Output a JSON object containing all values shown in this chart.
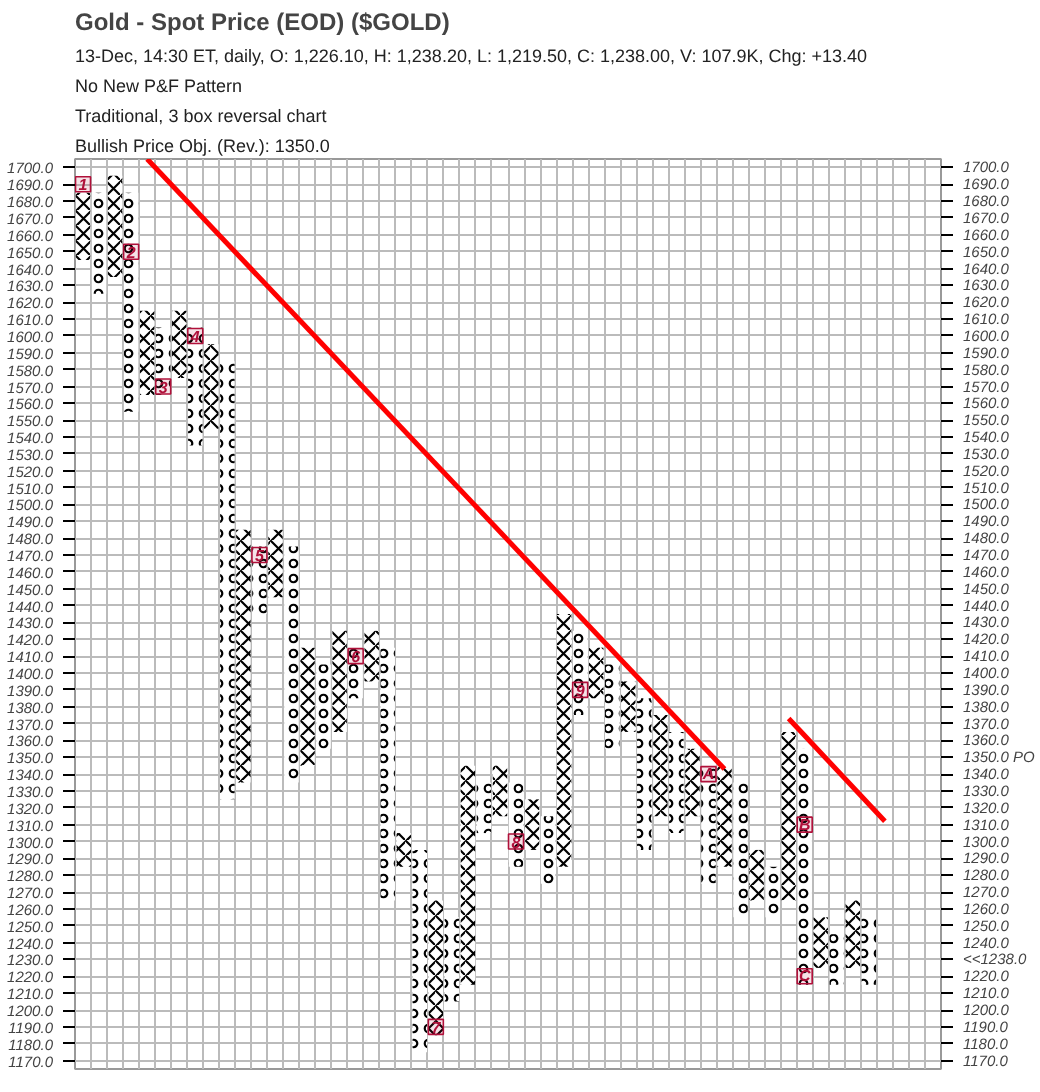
{
  "chart_data": {
    "type": "bar",
    "title": "Gold - Spot Price (EOD) ($GOLD)",
    "subtitle": "13-Dec, 14:30 ET, daily, O: 1,226.10, H: 1,238.20, L: 1,219.50, C: 1,238.00, V: 107.9K, Chg: +13.40",
    "annotations": [
      "No New P&F Pattern",
      "Traditional, 3 box reversal chart",
      "Bullish Price Obj. (Rev.): 1350.0"
    ],
    "categories": [
      null,
      null,
      null,
      null,
      null,
      null,
      null,
      null,
      null,
      null,
      null,
      null,
      null,
      null,
      null,
      null,
      null,
      null,
      null,
      null,
      null,
      null,
      null,
      null,
      null,
      null,
      null,
      null,
      null,
      null,
      null,
      null,
      null,
      null,
      null,
      null,
      null,
      null,
      null,
      null,
      null,
      null,
      null,
      null,
      null,
      null,
      null,
      null,
      null,
      null,
      null,
      null,
      null,
      null
    ],
    "series": [
      {
        "marker": "cross",
        "color": "#000000",
        "base": [
          1645,
          null,
          1635,
          null,
          1565,
          null,
          1575,
          null,
          1545,
          null,
          1335,
          null,
          1445,
          null,
          1345,
          null,
          1365,
          null,
          1395,
          null,
          1285,
          null,
          1185,
          null,
          1215,
          null,
          1315,
          null,
          1295,
          null,
          1285,
          null,
          1385,
          null,
          1365,
          null,
          1315,
          null,
          1315,
          null,
          1285,
          null,
          1265,
          null,
          1265,
          null,
          1225,
          null,
          1225,
          null,
          null,
          null,
          null,
          null
        ],
        "values": [
          40,
          null,
          60,
          null,
          50,
          null,
          40,
          null,
          50,
          null,
          150,
          null,
          40,
          null,
          70,
          null,
          60,
          null,
          30,
          null,
          20,
          null,
          80,
          null,
          130,
          null,
          30,
          null,
          30,
          null,
          150,
          null,
          30,
          null,
          30,
          null,
          60,
          null,
          40,
          null,
          60,
          null,
          30,
          null,
          100,
          null,
          30,
          null,
          40,
          null,
          null,
          null,
          null,
          null
        ]
      },
      {
        "marker": "circle",
        "color": "#000000",
        "base": [
          null,
          1625,
          null,
          1555,
          null,
          1565,
          null,
          1535,
          null,
          1325,
          null,
          1435,
          null,
          1335,
          null,
          1355,
          null,
          1385,
          null,
          1265,
          null,
          1175,
          null,
          1205,
          null,
          1305,
          null,
          1285,
          null,
          1275,
          null,
          1375,
          null,
          1355,
          null,
          1295,
          null,
          1305,
          null,
          1275,
          null,
          1255,
          null,
          1255,
          null,
          1215,
          null,
          1215,
          null,
          1215,
          null,
          null,
          null,
          null
        ],
        "values": [
          null,
          60,
          null,
          130,
          null,
          40,
          null,
          70,
          null,
          260,
          null,
          40,
          null,
          140,
          null,
          50,
          null,
          30,
          null,
          150,
          null,
          120,
          null,
          50,
          null,
          30,
          null,
          50,
          null,
          40,
          null,
          50,
          null,
          50,
          null,
          90,
          null,
          60,
          null,
          70,
          null,
          80,
          null,
          30,
          null,
          140,
          null,
          30,
          null,
          40,
          null,
          null,
          null,
          null
        ]
      },
      {
        "type": "line",
        "color": "#ff0000",
        "values": [
          null,
          null,
          null,
          null,
          1705,
          null,
          null,
          null,
          null,
          null,
          null,
          null,
          null,
          null,
          null,
          null,
          null,
          null,
          null,
          null,
          null,
          null,
          null,
          null,
          null,
          null,
          null,
          null,
          null,
          null,
          null,
          null,
          null,
          null,
          null,
          null,
          null,
          null,
          null,
          null,
          1343,
          null,
          null,
          null,
          null,
          null,
          null,
          null,
          null,
          null,
          null,
          null,
          null,
          null
        ]
      },
      {
        "type": "line",
        "color": "#ff0000",
        "values": [
          null,
          null,
          null,
          null,
          null,
          null,
          null,
          null,
          null,
          null,
          null,
          null,
          null,
          null,
          null,
          null,
          null,
          null,
          null,
          null,
          null,
          null,
          null,
          null,
          null,
          null,
          null,
          null,
          null,
          null,
          null,
          null,
          null,
          null,
          null,
          null,
          null,
          null,
          null,
          null,
          null,
          null,
          null,
          null,
          1373,
          null,
          null,
          null,
          null,
          null,
          1312,
          null,
          null,
          null
        ]
      },
      {
        "type": "scatter",
        "marker": "square",
        "name": "1",
        "color": "#b0103a",
        "values": [
          1690,
          null,
          null,
          null,
          null,
          null,
          null,
          null,
          null,
          null,
          null,
          null,
          null,
          null,
          null,
          null,
          null,
          null,
          null,
          null,
          null,
          null,
          null,
          null,
          null,
          null,
          null,
          null,
          null,
          null,
          null,
          null,
          null,
          null,
          null,
          null,
          null,
          null,
          null,
          null,
          null,
          null,
          null,
          null,
          null,
          null,
          null,
          null,
          null,
          null,
          null,
          null,
          null,
          null
        ]
      },
      {
        "type": "scatter",
        "marker": "square",
        "name": "2",
        "color": "#b0103a",
        "values": [
          null,
          null,
          null,
          1650,
          null,
          null,
          null,
          null,
          null,
          null,
          null,
          null,
          null,
          null,
          null,
          null,
          null,
          null,
          null,
          null,
          null,
          null,
          null,
          null,
          null,
          null,
          null,
          null,
          null,
          null,
          null,
          null,
          null,
          null,
          null,
          null,
          null,
          null,
          null,
          null,
          null,
          null,
          null,
          null,
          null,
          null,
          null,
          null,
          null,
          null,
          null,
          null,
          null,
          null
        ]
      },
      {
        "type": "scatter",
        "marker": "square",
        "name": "3",
        "color": "#b0103a",
        "values": [
          null,
          null,
          null,
          null,
          null,
          1570,
          null,
          null,
          null,
          null,
          null,
          null,
          null,
          null,
          null,
          null,
          null,
          null,
          null,
          null,
          null,
          null,
          null,
          null,
          null,
          null,
          null,
          null,
          null,
          null,
          null,
          null,
          null,
          null,
          null,
          null,
          null,
          null,
          null,
          null,
          null,
          null,
          null,
          null,
          null,
          null,
          null,
          null,
          null,
          null,
          null,
          null,
          null,
          null
        ]
      },
      {
        "type": "scatter",
        "marker": "square",
        "name": "4",
        "color": "#b0103a",
        "values": [
          null,
          null,
          null,
          null,
          null,
          null,
          null,
          1600,
          null,
          null,
          null,
          null,
          null,
          null,
          null,
          null,
          null,
          null,
          null,
          null,
          null,
          null,
          null,
          null,
          null,
          null,
          null,
          null,
          null,
          null,
          null,
          null,
          null,
          null,
          null,
          null,
          null,
          null,
          null,
          null,
          null,
          null,
          null,
          null,
          null,
          null,
          null,
          null,
          null,
          null,
          null,
          null,
          null,
          null
        ]
      },
      {
        "type": "scatter",
        "marker": "square",
        "name": "5",
        "color": "#b0103a",
        "values": [
          null,
          null,
          null,
          null,
          null,
          null,
          null,
          null,
          null,
          null,
          null,
          1470,
          null,
          null,
          null,
          null,
          null,
          null,
          null,
          null,
          null,
          null,
          null,
          null,
          null,
          null,
          null,
          null,
          null,
          null,
          null,
          null,
          null,
          null,
          null,
          null,
          null,
          null,
          null,
          null,
          null,
          null,
          null,
          null,
          null,
          null,
          null,
          null,
          null,
          null,
          null,
          null,
          null,
          null
        ]
      },
      {
        "type": "scatter",
        "marker": "square",
        "name": "6",
        "color": "#b0103a",
        "values": [
          null,
          null,
          null,
          null,
          null,
          null,
          null,
          null,
          null,
          null,
          null,
          null,
          null,
          null,
          null,
          null,
          null,
          1410,
          null,
          null,
          null,
          null,
          null,
          null,
          null,
          null,
          null,
          null,
          null,
          null,
          null,
          null,
          null,
          null,
          null,
          null,
          null,
          null,
          null,
          null,
          null,
          null,
          null,
          null,
          null,
          null,
          null,
          null,
          null,
          null,
          null,
          null,
          null,
          null
        ]
      },
      {
        "type": "scatter",
        "marker": "square",
        "name": "7",
        "color": "#b0103a",
        "values": [
          null,
          null,
          null,
          null,
          null,
          null,
          null,
          null,
          null,
          null,
          null,
          null,
          null,
          null,
          null,
          null,
          null,
          null,
          null,
          null,
          null,
          null,
          1190,
          null,
          null,
          null,
          null,
          null,
          null,
          null,
          null,
          null,
          null,
          null,
          null,
          null,
          null,
          null,
          null,
          null,
          null,
          null,
          null,
          null,
          null,
          null,
          null,
          null,
          null,
          null,
          null,
          null,
          null,
          null
        ]
      },
      {
        "type": "scatter",
        "marker": "square",
        "name": "8",
        "color": "#b0103a",
        "values": [
          null,
          null,
          null,
          null,
          null,
          null,
          null,
          null,
          null,
          null,
          null,
          null,
          null,
          null,
          null,
          null,
          null,
          null,
          null,
          null,
          null,
          null,
          null,
          null,
          null,
          null,
          null,
          1300,
          null,
          null,
          null,
          null,
          null,
          null,
          null,
          null,
          null,
          null,
          null,
          null,
          null,
          null,
          null,
          null,
          null,
          null,
          null,
          null,
          null,
          null,
          null,
          null,
          null,
          null
        ]
      },
      {
        "type": "scatter",
        "marker": "square",
        "name": "9",
        "color": "#b0103a",
        "values": [
          null,
          null,
          null,
          null,
          null,
          null,
          null,
          null,
          null,
          null,
          null,
          null,
          null,
          null,
          null,
          null,
          null,
          null,
          null,
          null,
          null,
          null,
          null,
          null,
          null,
          null,
          null,
          null,
          null,
          null,
          null,
          1390,
          null,
          null,
          null,
          null,
          null,
          null,
          null,
          null,
          null,
          null,
          null,
          null,
          null,
          null,
          null,
          null,
          null,
          null,
          null,
          null,
          null,
          null
        ]
      },
      {
        "type": "scatter",
        "marker": "square",
        "name": "A",
        "color": "#b0103a",
        "values": [
          null,
          null,
          null,
          null,
          null,
          null,
          null,
          null,
          null,
          null,
          null,
          null,
          null,
          null,
          null,
          null,
          null,
          null,
          null,
          null,
          null,
          null,
          null,
          null,
          null,
          null,
          null,
          null,
          null,
          null,
          null,
          null,
          null,
          null,
          null,
          null,
          null,
          null,
          null,
          1340,
          null,
          null,
          null,
          null,
          null,
          null,
          null,
          null,
          null,
          null,
          null,
          null,
          null,
          null
        ]
      },
      {
        "type": "scatter",
        "marker": "square",
        "name": "B",
        "color": "#b0103a",
        "values": [
          null,
          null,
          null,
          null,
          null,
          null,
          null,
          null,
          null,
          null,
          null,
          null,
          null,
          null,
          null,
          null,
          null,
          null,
          null,
          null,
          null,
          null,
          null,
          null,
          null,
          null,
          null,
          null,
          null,
          null,
          null,
          null,
          null,
          null,
          null,
          null,
          null,
          null,
          null,
          null,
          null,
          null,
          null,
          null,
          null,
          1310,
          null,
          null,
          null,
          null,
          null,
          null,
          null,
          null
        ]
      },
      {
        "type": "scatter",
        "marker": "square",
        "name": "C",
        "color": "#b0103a",
        "values": [
          null,
          null,
          null,
          null,
          null,
          null,
          null,
          null,
          null,
          null,
          null,
          null,
          null,
          null,
          null,
          null,
          null,
          null,
          null,
          null,
          null,
          null,
          null,
          null,
          null,
          null,
          null,
          null,
          null,
          null,
          null,
          null,
          null,
          null,
          null,
          null,
          null,
          null,
          null,
          null,
          null,
          null,
          null,
          null,
          null,
          1220,
          null,
          null,
          null,
          null,
          null,
          null,
          null,
          null
        ]
      }
    ],
    "ylim": [
      1165,
      1705
    ],
    "yticks": [
      {
        "value": 1700,
        "label": "1700.0"
      },
      {
        "value": 1690,
        "label": "1690.0"
      },
      {
        "value": 1680,
        "label": "1680.0"
      },
      {
        "value": 1670,
        "label": "1670.0"
      },
      {
        "value": 1660,
        "label": "1660.0"
      },
      {
        "value": 1650,
        "label": "1650.0"
      },
      {
        "value": 1640,
        "label": "1640.0"
      },
      {
        "value": 1630,
        "label": "1630.0"
      },
      {
        "value": 1620,
        "label": "1620.0"
      },
      {
        "value": 1610,
        "label": "1610.0"
      },
      {
        "value": 1600,
        "label": "1600.0"
      },
      {
        "value": 1590,
        "label": "1590.0"
      },
      {
        "value": 1580,
        "label": "1580.0"
      },
      {
        "value": 1570,
        "label": "1570.0"
      },
      {
        "value": 1560,
        "label": "1560.0"
      },
      {
        "value": 1550,
        "label": "1550.0"
      },
      {
        "value": 1540,
        "label": "1540.0"
      },
      {
        "value": 1530,
        "label": "1530.0"
      },
      {
        "value": 1520,
        "label": "1520.0"
      },
      {
        "value": 1510,
        "label": "1510.0"
      },
      {
        "value": 1500,
        "label": "1500.0"
      },
      {
        "value": 1490,
        "label": "1490.0"
      },
      {
        "value": 1480,
        "label": "1480.0"
      },
      {
        "value": 1470,
        "label": "1470.0"
      },
      {
        "value": 1460,
        "label": "1460.0"
      },
      {
        "value": 1450,
        "label": "1450.0"
      },
      {
        "value": 1440,
        "label": "1440.0"
      },
      {
        "value": 1430,
        "label": "1430.0"
      },
      {
        "value": 1420,
        "label": "1420.0"
      },
      {
        "value": 1410,
        "label": "1410.0"
      },
      {
        "value": 1400,
        "label": "1400.0"
      },
      {
        "value": 1390,
        "label": "1390.0"
      },
      {
        "value": 1380,
        "label": "1380.0"
      },
      {
        "value": 1370,
        "label": "1370.0"
      },
      {
        "value": 1360,
        "label": "1360.0"
      },
      {
        "value": 1350,
        "label": "1350.0"
      },
      {
        "value": 1340,
        "label": "1340.0"
      },
      {
        "value": 1330,
        "label": "1330.0"
      },
      {
        "value": 1320,
        "label": "1320.0"
      },
      {
        "value": 1310,
        "label": "1310.0"
      },
      {
        "value": 1300,
        "label": "1300.0"
      },
      {
        "value": 1290,
        "label": "1290.0"
      },
      {
        "value": 1280,
        "label": "1280.0"
      },
      {
        "value": 1270,
        "label": "1270.0"
      },
      {
        "value": 1260,
        "label": "1260.0"
      },
      {
        "value": 1250,
        "label": "1250.0"
      },
      {
        "value": 1240,
        "label": "1240.0"
      },
      {
        "value": 1230,
        "label": "1230.0"
      },
      {
        "value": 1220,
        "label": "1220.0"
      },
      {
        "value": 1210,
        "label": "1210.0"
      },
      {
        "value": 1200,
        "label": "1200.0"
      },
      {
        "value": 1190,
        "label": "1190.0"
      },
      {
        "value": 1180,
        "label": "1180.0"
      },
      {
        "value": 1170,
        "label": "1170.0"
      }
    ],
    "y2lim": [
      1165,
      1705
    ],
    "y2ticks": [
      {
        "value": 1700,
        "label": "1700.0"
      },
      {
        "value": 1690,
        "label": "1690.0"
      },
      {
        "value": 1680,
        "label": "1680.0"
      },
      {
        "value": 1670,
        "label": "1670.0"
      },
      {
        "value": 1660,
        "label": "1660.0"
      },
      {
        "value": 1650,
        "label": "1650.0"
      },
      {
        "value": 1640,
        "label": "1640.0"
      },
      {
        "value": 1630,
        "label": "1630.0"
      },
      {
        "value": 1620,
        "label": "1620.0"
      },
      {
        "value": 1610,
        "label": "1610.0"
      },
      {
        "value": 1600,
        "label": "1600.0"
      },
      {
        "value": 1590,
        "label": "1590.0"
      },
      {
        "value": 1580,
        "label": "1580.0"
      },
      {
        "value": 1570,
        "label": "1570.0"
      },
      {
        "value": 1560,
        "label": "1560.0"
      },
      {
        "value": 1550,
        "label": "1550.0"
      },
      {
        "value": 1540,
        "label": "1540.0"
      },
      {
        "value": 1530,
        "label": "1530.0"
      },
      {
        "value": 1520,
        "label": "1520.0"
      },
      {
        "value": 1510,
        "label": "1510.0"
      },
      {
        "value": 1500,
        "label": "1500.0"
      },
      {
        "value": 1490,
        "label": "1490.0"
      },
      {
        "value": 1480,
        "label": "1480.0"
      },
      {
        "value": 1470,
        "label": "1470.0"
      },
      {
        "value": 1460,
        "label": "1460.0"
      },
      {
        "value": 1450,
        "label": "1450.0"
      },
      {
        "value": 1440,
        "label": "1440.0"
      },
      {
        "value": 1430,
        "label": "1430.0"
      },
      {
        "value": 1420,
        "label": "1420.0"
      },
      {
        "value": 1410,
        "label": "1410.0"
      },
      {
        "value": 1400,
        "label": "1400.0"
      },
      {
        "value": 1390,
        "label": "1390.0"
      },
      {
        "value": 1380,
        "label": "1380.0"
      },
      {
        "value": 1370,
        "label": "1370.0"
      },
      {
        "value": 1360,
        "label": "1360.0"
      },
      {
        "value": 1350,
        "label": "1350.0 PO"
      },
      {
        "value": 1340,
        "label": "1340.0"
      },
      {
        "value": 1330,
        "label": "1330.0"
      },
      {
        "value": 1320,
        "label": "1320.0"
      },
      {
        "value": 1310,
        "label": "1310.0"
      },
      {
        "value": 1300,
        "label": "1300.0"
      },
      {
        "value": 1290,
        "label": "1290.0"
      },
      {
        "value": 1280,
        "label": "1280.0"
      },
      {
        "value": 1270,
        "label": "1270.0"
      },
      {
        "value": 1260,
        "label": "1260.0"
      },
      {
        "value": 1250,
        "label": "1250.0"
      },
      {
        "value": 1240,
        "label": "1240.0"
      },
      {
        "value": 1230,
        "label": "<<1238.0"
      },
      {
        "value": 1220,
        "label": "1220.0"
      },
      {
        "value": 1210,
        "label": "1210.0"
      },
      {
        "value": 1200,
        "label": "1200.0"
      },
      {
        "value": 1190,
        "label": "1190.0"
      },
      {
        "value": 1180,
        "label": "1180.0"
      },
      {
        "value": 1170,
        "label": "1170.0"
      }
    ],
    "tick_labels": "y",
    "grid": true
  }
}
